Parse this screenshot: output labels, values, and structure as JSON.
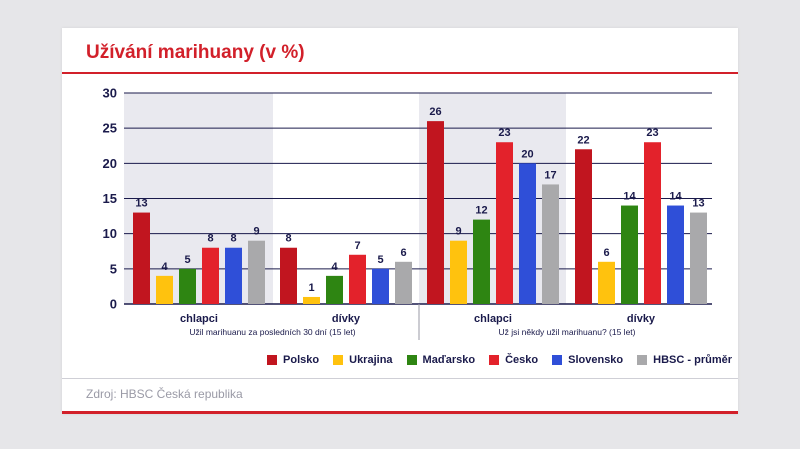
{
  "title": "Užívání marihuany (v %)",
  "source": "Zdroj: HBSC Česká republika",
  "colors": {
    "title": "#d2202a",
    "axis": "#1a1a4b",
    "shade": "#e9e9ef"
  },
  "chart_data": {
    "type": "bar",
    "title": "Užívání marihuany (v %)",
    "ylim": [
      0,
      30
    ],
    "yticks": [
      0,
      5,
      10,
      15,
      20,
      25,
      30
    ],
    "grid": true,
    "legend_placement": "bottom-right",
    "sections": [
      {
        "label": "Užil marihuanu za posledních 30 dní (15 let)",
        "groups": [
          "chlapci",
          "dívky"
        ]
      },
      {
        "label": "Už jsi někdy užil marihuanu? (15 let)",
        "groups": [
          "chlapci",
          "dívky"
        ]
      }
    ],
    "categories": [
      "chlapci",
      "dívky",
      "chlapci",
      "dívky"
    ],
    "series": [
      {
        "name": "Polsko",
        "color": "#c1151f",
        "values": [
          13,
          8,
          26,
          22
        ]
      },
      {
        "name": "Ukrajina",
        "color": "#ffc20e",
        "values": [
          4,
          1,
          9,
          6
        ]
      },
      {
        "name": "Maďarsko",
        "color": "#2e8512",
        "values": [
          5,
          4,
          12,
          14
        ]
      },
      {
        "name": "Česko",
        "color": "#e3222b",
        "values": [
          8,
          7,
          23,
          23
        ]
      },
      {
        "name": "Slovensko",
        "color": "#2f4fd8",
        "values": [
          8,
          5,
          20,
          14
        ]
      },
      {
        "name": "HBSC - průměr",
        "color": "#a9a9ab",
        "values": [
          9,
          6,
          17,
          13
        ]
      }
    ]
  }
}
